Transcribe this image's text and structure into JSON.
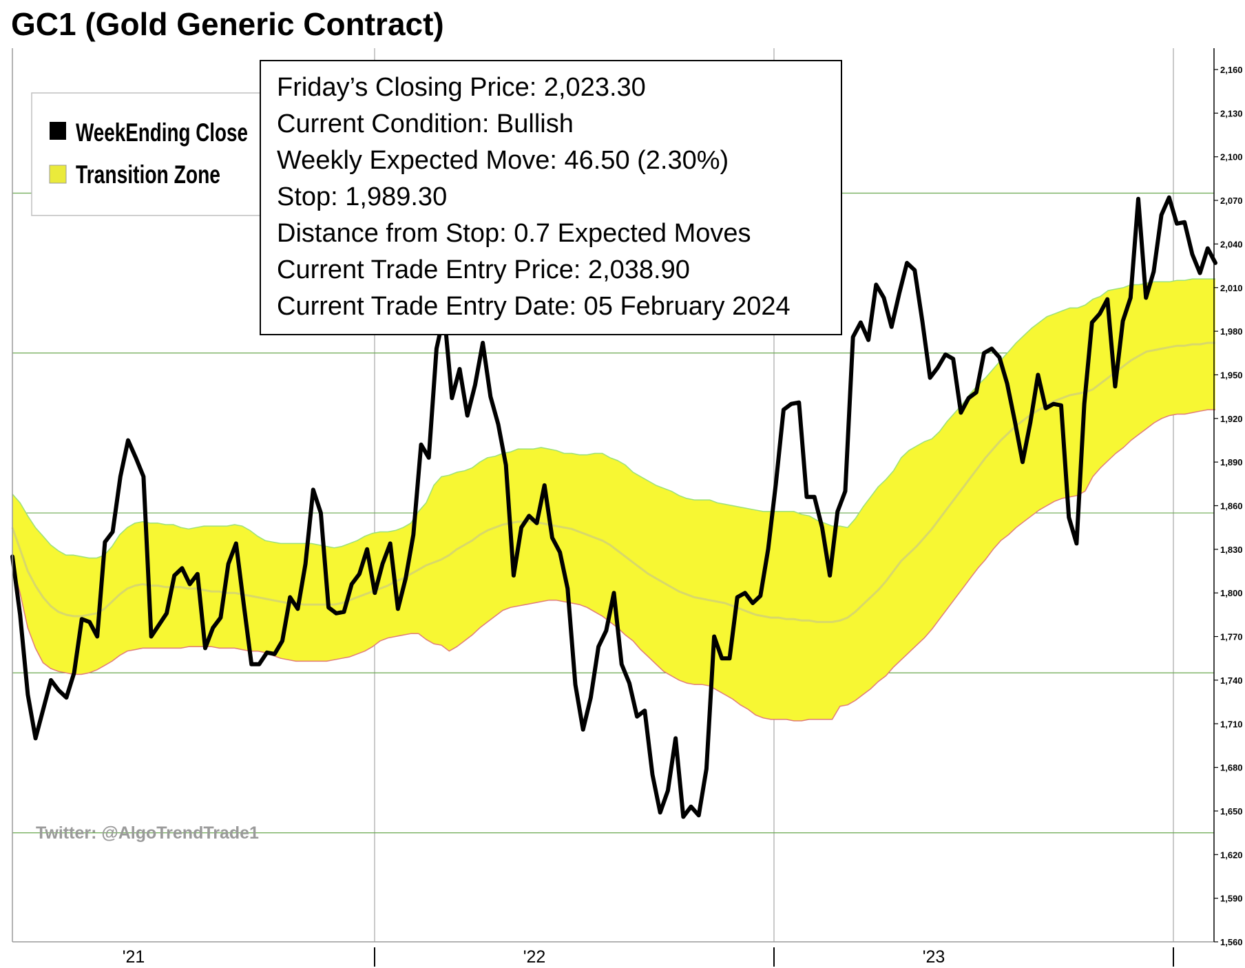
{
  "title": "GC1 (Gold Generic Contract)",
  "chart_data": {
    "type": "line",
    "title": "GC1 (Gold Generic Contract)",
    "xlabel": "",
    "ylabel": "",
    "ylim": [
      1560,
      2180
    ],
    "y_ticks": [
      "1,560",
      "1,590",
      "1,620",
      "1,650",
      "1,680",
      "1,710",
      "1,740",
      "1,770",
      "1,800",
      "1,830",
      "1,860",
      "1,890",
      "1,920",
      "1,950",
      "1,980",
      "2,010",
      "2,040",
      "2,070",
      "2,100",
      "2,130",
      "2,160"
    ],
    "x_tick_labels": [
      "'21",
      "'22",
      "'23"
    ],
    "legend_position": "top-left",
    "grid": true,
    "series": [
      {
        "name": "WeekEnding Close",
        "color": "#000000",
        "values": [
          1825,
          1785,
          1730,
          1700,
          1720,
          1740,
          1733,
          1728,
          1745,
          1782,
          1780,
          1770,
          1835,
          1842,
          1880,
          1905,
          1893,
          1880,
          1770,
          1778,
          1786,
          1812,
          1817,
          1806,
          1813,
          1762,
          1776,
          1783,
          1820,
          1834,
          1792,
          1751,
          1751,
          1759,
          1758,
          1767,
          1797,
          1789,
          1820,
          1871,
          1855,
          1790,
          1786,
          1787,
          1806,
          1813,
          1830,
          1800,
          1820,
          1834,
          1789,
          1810,
          1840,
          1902,
          1893,
          1968,
          1992,
          1934,
          1954,
          1922,
          1943,
          1972,
          1935,
          1916,
          1888,
          1812,
          1845,
          1853,
          1848,
          1874,
          1838,
          1828,
          1803,
          1737,
          1706,
          1728,
          1763,
          1774,
          1800,
          1751,
          1738,
          1715,
          1719,
          1675,
          1649,
          1664,
          1700,
          1646,
          1653,
          1647,
          1679,
          1770,
          1755,
          1755,
          1797,
          1800,
          1793,
          1798,
          1830,
          1875,
          1926,
          1930,
          1931,
          1866,
          1866,
          1845,
          1812,
          1856,
          1870,
          1976,
          1986,
          1974,
          2012,
          2003,
          1983,
          2006,
          2027,
          2022,
          1987,
          1948,
          1955,
          1964,
          1961,
          1924,
          1934,
          1938,
          1965,
          1968,
          1962,
          1944,
          1918,
          1890,
          1917,
          1950,
          1927,
          1930,
          1929,
          1852,
          1834,
          1930,
          1986,
          1992,
          2002,
          1942,
          1987,
          2003,
          2071,
          2003,
          2021,
          2060,
          2072,
          2054,
          2055,
          2033,
          2020,
          2037,
          2027
        ],
        "final_value": 2023.3
      },
      {
        "name": "Transition Zone",
        "color": "#f7f733",
        "upper": [
          1868,
          1862,
          1853,
          1845,
          1839,
          1833,
          1829,
          1826,
          1826,
          1825,
          1824,
          1824,
          1826,
          1832,
          1840,
          1845,
          1848,
          1849,
          1848,
          1848,
          1847,
          1847,
          1845,
          1844,
          1845,
          1846,
          1846,
          1846,
          1846,
          1847,
          1846,
          1843,
          1839,
          1836,
          1835,
          1834,
          1834,
          1834,
          1834,
          1834,
          1833,
          1832,
          1831,
          1832,
          1834,
          1836,
          1839,
          1841,
          1842,
          1842,
          1843,
          1845,
          1848,
          1856,
          1862,
          1874,
          1880,
          1881,
          1883,
          1884,
          1886,
          1890,
          1893,
          1894,
          1896,
          1897,
          1899,
          1899,
          1899,
          1900,
          1899,
          1898,
          1896,
          1896,
          1895,
          1895,
          1896,
          1896,
          1893,
          1891,
          1888,
          1883,
          1880,
          1877,
          1874,
          1872,
          1870,
          1867,
          1865,
          1864,
          1864,
          1864,
          1862,
          1861,
          1860,
          1859,
          1858,
          1857,
          1856,
          1856,
          1856,
          1856,
          1856,
          1854,
          1853,
          1850,
          1848,
          1846,
          1846,
          1845,
          1851,
          1859,
          1866,
          1873,
          1878,
          1884,
          1893,
          1898,
          1901,
          1904,
          1906,
          1911,
          1918,
          1924,
          1930,
          1937,
          1943,
          1948,
          1954,
          1960,
          1966,
          1972,
          1977,
          1982,
          1986,
          1990,
          1992,
          1994,
          1996,
          1996,
          1998,
          2002,
          2004,
          2008,
          2009,
          2010,
          2012,
          2012,
          2013,
          2014,
          2014,
          2014,
          2015,
          2015,
          2016,
          2016,
          2016,
          2016
        ],
        "lower": [
          1819,
          1800,
          1776,
          1762,
          1752,
          1748,
          1746,
          1745,
          1744,
          1744,
          1745,
          1747,
          1750,
          1753,
          1757,
          1760,
          1761,
          1762,
          1762,
          1762,
          1762,
          1762,
          1762,
          1763,
          1763,
          1763,
          1763,
          1762,
          1762,
          1762,
          1761,
          1760,
          1760,
          1759,
          1757,
          1755,
          1754,
          1753,
          1753,
          1753,
          1753,
          1753,
          1754,
          1755,
          1756,
          1758,
          1760,
          1763,
          1767,
          1769,
          1770,
          1771,
          1772,
          1772,
          1768,
          1765,
          1764,
          1760,
          1763,
          1767,
          1771,
          1776,
          1780,
          1784,
          1788,
          1790,
          1791,
          1792,
          1793,
          1794,
          1795,
          1795,
          1794,
          1793,
          1792,
          1790,
          1787,
          1784,
          1780,
          1776,
          1771,
          1767,
          1761,
          1756,
          1751,
          1746,
          1743,
          1740,
          1738,
          1737,
          1737,
          1736,
          1733,
          1730,
          1727,
          1723,
          1720,
          1716,
          1714,
          1713,
          1713,
          1713,
          1712,
          1712,
          1713,
          1713,
          1713,
          1713,
          1722,
          1723,
          1726,
          1730,
          1734,
          1739,
          1743,
          1749,
          1754,
          1759,
          1764,
          1769,
          1775,
          1782,
          1789,
          1796,
          1803,
          1810,
          1817,
          1823,
          1830,
          1836,
          1840,
          1845,
          1849,
          1853,
          1857,
          1860,
          1863,
          1865,
          1866,
          1867,
          1870,
          1880,
          1886,
          1891,
          1896,
          1900,
          1905,
          1909,
          1913,
          1917,
          1920,
          1922,
          1923,
          1923,
          1924,
          1925,
          1926,
          1926
        ],
        "midline": [
          1845,
          1830,
          1815,
          1805,
          1797,
          1791,
          1787,
          1785,
          1784,
          1784,
          1785,
          1786,
          1789,
          1794,
          1799,
          1803,
          1805,
          1806,
          1805,
          1805,
          1804,
          1804,
          1804,
          1803,
          1803,
          1802,
          1801,
          1801,
          1800,
          1800,
          1799,
          1798,
          1797,
          1796,
          1795,
          1794,
          1793,
          1793,
          1792,
          1792,
          1792,
          1792,
          1792,
          1793,
          1795,
          1797,
          1799,
          1801,
          1803,
          1805,
          1808,
          1810,
          1813,
          1816,
          1819,
          1821,
          1823,
          1826,
          1830,
          1833,
          1836,
          1840,
          1843,
          1845,
          1847,
          1848,
          1849,
          1849,
          1849,
          1848,
          1847,
          1846,
          1845,
          1844,
          1842,
          1840,
          1838,
          1836,
          1833,
          1829,
          1825,
          1821,
          1817,
          1813,
          1810,
          1807,
          1804,
          1801,
          1799,
          1797,
          1796,
          1795,
          1794,
          1793,
          1791,
          1789,
          1787,
          1785,
          1784,
          1783,
          1783,
          1782,
          1782,
          1781,
          1781,
          1780,
          1780,
          1780,
          1781,
          1783,
          1787,
          1792,
          1797,
          1802,
          1808,
          1815,
          1822,
          1827,
          1832,
          1838,
          1844,
          1851,
          1858,
          1865,
          1872,
          1879,
          1886,
          1893,
          1899,
          1905,
          1910,
          1915,
          1919,
          1923,
          1926,
          1929,
          1932,
          1934,
          1936,
          1937,
          1938,
          1940,
          1944,
          1948,
          1952,
          1956,
          1960,
          1963,
          1966,
          1967,
          1968,
          1969,
          1970,
          1970,
          1971,
          1971,
          1972,
          1972
        ]
      }
    ]
  },
  "legend": {
    "items": [
      {
        "label": "WeekEnding Close",
        "color": "#000000"
      },
      {
        "label": "Transition Zone",
        "color": "#eaea3b"
      }
    ]
  },
  "info_box": {
    "lines": [
      "Friday’s Closing Price: 2,023.30",
      "Current Condition: Bullish",
      "Weekly Expected Move: 46.50 (2.30%)",
      "Stop: 1,989.30",
      "Distance from Stop: 0.7 Expected Moves",
      "Current Trade Entry Price: 2,038.90",
      "Current Trade Entry Date: 05 February 2024"
    ]
  },
  "watermark": "Twitter: @AlgoTrendTrade1",
  "colors": {
    "grid_horizontal": "#6aa84f",
    "grid_vertical": "#b7b7b7",
    "zone_fill": "#f7f733",
    "zone_upper_edge": "#9ae07a",
    "zone_lower_edge": "#e07a7a",
    "midline": "#d8d86a",
    "close_line": "#000000"
  }
}
